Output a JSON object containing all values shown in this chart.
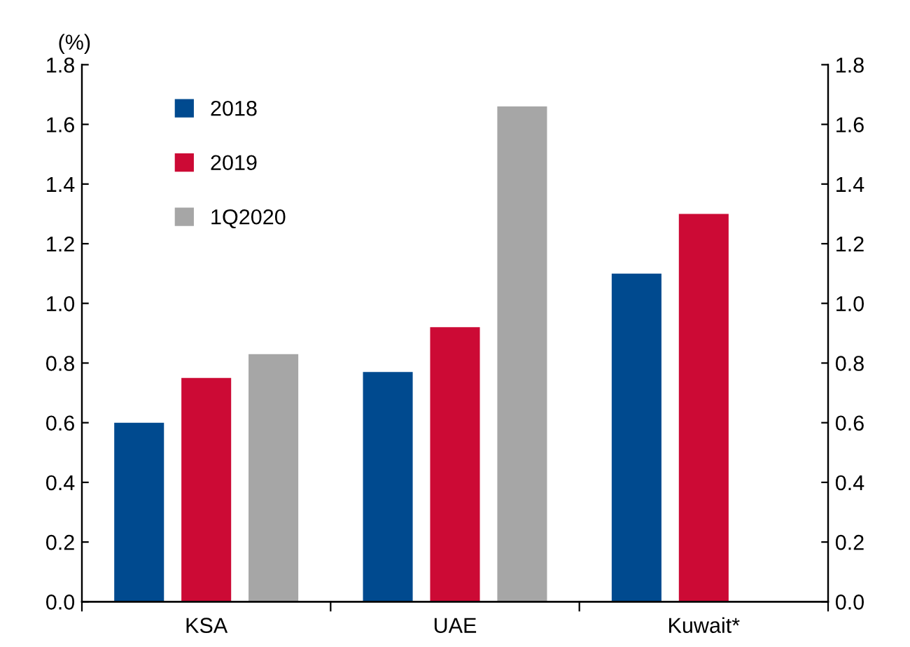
{
  "chart_data": {
    "type": "bar",
    "ylabel": "(%)",
    "categories": [
      "KSA",
      "UAE",
      "Kuwait*"
    ],
    "series": [
      {
        "name": "2018",
        "color": "#004a8f",
        "values": [
          0.6,
          0.77,
          1.1
        ]
      },
      {
        "name": "2019",
        "color": "#cc0a35",
        "values": [
          0.75,
          0.92,
          1.3
        ]
      },
      {
        "name": "1Q2020",
        "color": "#a6a6a6",
        "values": [
          0.83,
          1.66,
          null
        ]
      }
    ],
    "ylim": [
      0,
      1.8
    ],
    "yticks": [
      {
        "value": 0,
        "label": "0.0"
      },
      {
        "value": 0.2,
        "label": "0.2"
      },
      {
        "value": 0.4,
        "label": "0.4"
      },
      {
        "value": 0.6,
        "label": "0.6"
      },
      {
        "value": 0.8,
        "label": "0.8"
      },
      {
        "value": 1.0,
        "label": "1.0"
      },
      {
        "value": 1.2,
        "label": "1.2"
      },
      {
        "value": 1.4,
        "label": "1.4"
      },
      {
        "value": 1.6,
        "label": "1.6"
      },
      {
        "value": 1.8,
        "label": "1.8"
      }
    ],
    "y2lim": [
      0,
      1.8
    ],
    "y2ticks": [
      {
        "value": 0,
        "label": "0.0"
      },
      {
        "value": 0.2,
        "label": "0.2"
      },
      {
        "value": 0.4,
        "label": "0.4"
      },
      {
        "value": 0.6,
        "label": "0.6"
      },
      {
        "value": 0.8,
        "label": "0.8"
      },
      {
        "value": 1.0,
        "label": "1.0"
      },
      {
        "value": 1.2,
        "label": "1.2"
      },
      {
        "value": 1.4,
        "label": "1.4"
      },
      {
        "value": 1.6,
        "label": "1.6"
      },
      {
        "value": 1.8,
        "label": "1.8"
      }
    ],
    "grid": false,
    "legend": "top left"
  }
}
